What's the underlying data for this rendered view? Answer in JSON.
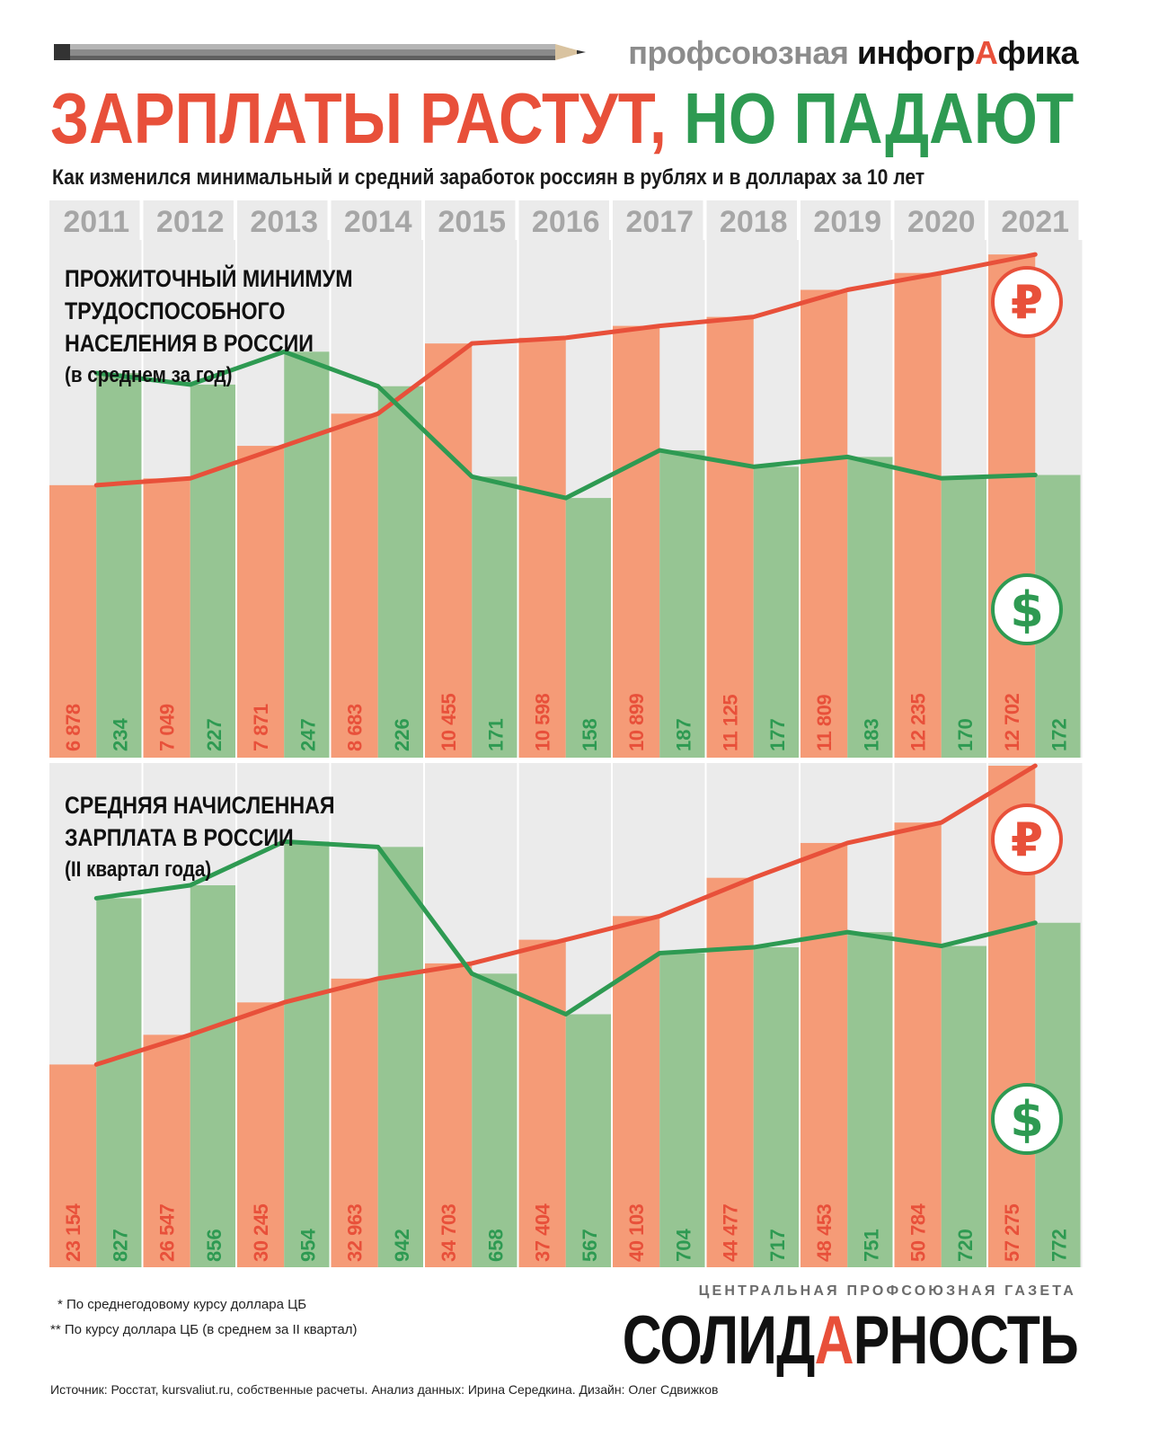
{
  "header": {
    "brand_prefix": "профсоюзная",
    "brand_main_1": "инфогр",
    "brand_accent": "А",
    "brand_main_2": "фика",
    "title_red": "ЗАРПЛАТЫ РАСТУТ,",
    "title_green": "НО ПАДАЮТ",
    "subtitle": "Как изменился минимальный и средний заработок россиян в рублях и в долларах за 10 лет"
  },
  "colors": {
    "ruble_bar": "#f59b77",
    "ruble_line": "#e8503a",
    "dollar_bar": "#96c593",
    "dollar_line": "#2e9a52",
    "panel_bg": "#ebebeb",
    "year_text": "#a6a6a6"
  },
  "icons": {
    "ruble": "ruble-icon",
    "dollar": "dollar-icon"
  },
  "chart_data": [
    {
      "type": "bar",
      "title_lines": [
        "ПРОЖИТОЧНЫЙ МИНИМУМ",
        "ТРУДОСПОСОБНОГО",
        "НАСЕЛЕНИЯ В РОССИИ"
      ],
      "title_sub": "(в среднем за год)",
      "categories": [
        "2011",
        "2012",
        "2013",
        "2014",
        "2015",
        "2016",
        "2017",
        "2018",
        "2019",
        "2020",
        "2021"
      ],
      "series": [
        {
          "values": [
            6878,
            7049,
            7871,
            8683,
            10455,
            10598,
            10899,
            11125,
            11809,
            12235,
            12702
          ],
          "labels": [
            "6 878",
            "7 049",
            "7 871",
            "8 683",
            "10 455",
            "10 598",
            "10 899",
            "11 125",
            "11 809",
            "12 235",
            "12 702"
          ]
        },
        {
          "values": [
            234,
            227,
            247,
            226,
            171,
            158,
            187,
            177,
            183,
            170,
            172
          ],
          "labels": [
            "234",
            "227",
            "247",
            "226",
            "171",
            "158",
            "187",
            "177",
            "183",
            "170",
            "172"
          ]
        }
      ],
      "ylim_rub": [
        0,
        13000
      ],
      "ylim_usd": [
        0,
        315
      ]
    },
    {
      "type": "bar",
      "title_lines": [
        "СРЕДНЯЯ НАЧИСЛЕННАЯ",
        "ЗАРПЛАТА В РОССИИ"
      ],
      "title_sub": "(II квартал года)",
      "categories": [
        "2011",
        "2012",
        "2013",
        "2014",
        "2015",
        "2016",
        "2017",
        "2018",
        "2019",
        "2020",
        "2021"
      ],
      "series": [
        {
          "values": [
            23154,
            26547,
            30245,
            32963,
            34703,
            37404,
            40103,
            44477,
            48453,
            50784,
            57275
          ],
          "labels": [
            "23 154",
            "26 547",
            "30 245",
            "32 963",
            "34 703",
            "37 404",
            "40 103",
            "44 477",
            "48 453",
            "50 784",
            "57 275"
          ]
        },
        {
          "values": [
            827,
            856,
            954,
            942,
            658,
            567,
            704,
            717,
            751,
            720,
            772
          ],
          "labels": [
            "827",
            "856",
            "954",
            "942",
            "658",
            "567",
            "704",
            "717",
            "751",
            "720",
            "772"
          ]
        }
      ],
      "ylim_rub": [
        0,
        57275
      ],
      "ylim_usd": [
        0,
        1130
      ]
    }
  ],
  "footer": {
    "footnote_1": "* По среднегодовому курсу доллара ЦБ",
    "footnote_2": "** По курсу доллара ЦБ (в среднем за II квартал)",
    "source": "Источник: Росстат, kursvaliut.ru, собственные расчеты. Анализ данных: Ирина Середкина. Дизайн: Олег Сдвижков",
    "paper_tagline": "ЦЕНТРАЛЬНАЯ ПРОФСОЮЗНАЯ ГАЗЕТА",
    "paper_name_1": "СОЛИД",
    "paper_name_accent": "А",
    "paper_name_2": "РНОСТЬ"
  }
}
